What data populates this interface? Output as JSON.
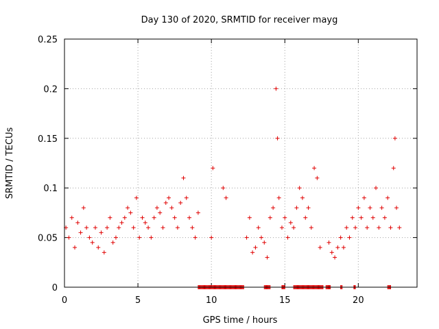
{
  "chart_data": {
    "type": "scatter",
    "title": "Day 130 of 2020, SRMTID for receiver mayg",
    "xlabel": "GPS time / hours",
    "ylabel": "SRMTID / TECUs",
    "xlim": [
      0,
      24
    ],
    "ylim": [
      0,
      0.25
    ],
    "xticks": [
      0,
      5,
      10,
      15,
      20
    ],
    "xtick_labels": [
      "0",
      "5",
      "10",
      "15",
      "20"
    ],
    "yticks": [
      0,
      0.05,
      0.1,
      0.15,
      0.2,
      0.25
    ],
    "ytick_labels": [
      "0",
      "0.05",
      "0.1",
      "0.15",
      "0.2",
      "0.25"
    ],
    "grid": true,
    "marker": "plus",
    "series": [
      {
        "name": "SRMTID",
        "color": "#e00000",
        "x": [
          0.1,
          0.3,
          0.5,
          0.7,
          0.9,
          1.1,
          1.3,
          1.5,
          1.7,
          1.9,
          2.1,
          2.3,
          2.5,
          2.7,
          2.9,
          3.1,
          3.3,
          3.5,
          3.7,
          3.9,
          4.1,
          4.3,
          4.5,
          4.7,
          4.9,
          5.1,
          5.3,
          5.5,
          5.7,
          5.9,
          6.1,
          6.3,
          6.5,
          6.7,
          6.9,
          7.1,
          7.3,
          7.5,
          7.7,
          7.9,
          8.1,
          8.3,
          8.5,
          8.7,
          8.9,
          9.1,
          10.0,
          10.1,
          10.8,
          11.0,
          12.4,
          12.6,
          12.8,
          13.0,
          13.2,
          13.4,
          13.6,
          13.8,
          14.0,
          14.2,
          14.4,
          14.5,
          14.6,
          14.8,
          15.0,
          15.2,
          15.4,
          15.6,
          15.8,
          16.0,
          16.2,
          16.4,
          16.6,
          16.8,
          17.0,
          17.2,
          17.4,
          18.0,
          18.2,
          18.4,
          18.6,
          18.8,
          19.0,
          19.2,
          19.4,
          19.6,
          19.8,
          20.0,
          20.2,
          20.4,
          20.6,
          20.8,
          21.0,
          21.2,
          21.4,
          21.6,
          21.8,
          22.0,
          22.2,
          22.4,
          22.5,
          22.6,
          22.8
        ],
        "y": [
          0.06,
          0.05,
          0.07,
          0.04,
          0.065,
          0.055,
          0.08,
          0.06,
          0.05,
          0.045,
          0.06,
          0.04,
          0.055,
          0.035,
          0.06,
          0.07,
          0.045,
          0.05,
          0.06,
          0.065,
          0.07,
          0.08,
          0.075,
          0.06,
          0.09,
          0.05,
          0.07,
          0.065,
          0.06,
          0.05,
          0.07,
          0.08,
          0.075,
          0.06,
          0.085,
          0.09,
          0.08,
          0.07,
          0.06,
          0.085,
          0.11,
          0.09,
          0.07,
          0.06,
          0.05,
          0.075,
          0.05,
          0.12,
          0.1,
          0.09,
          0.05,
          0.07,
          0.035,
          0.04,
          0.06,
          0.05,
          0.045,
          0.03,
          0.07,
          0.08,
          0.2,
          0.15,
          0.09,
          0.06,
          0.07,
          0.05,
          0.065,
          0.06,
          0.08,
          0.1,
          0.09,
          0.07,
          0.08,
          0.06,
          0.12,
          0.11,
          0.04,
          0.045,
          0.035,
          0.03,
          0.04,
          0.05,
          0.04,
          0.06,
          0.05,
          0.07,
          0.06,
          0.08,
          0.07,
          0.09,
          0.06,
          0.08,
          0.07,
          0.1,
          0.06,
          0.08,
          0.07,
          0.09,
          0.06,
          0.12,
          0.15,
          0.08,
          0.06
        ]
      }
    ],
    "zero_values_x_ranges": [
      [
        9.1,
        12.2
      ],
      [
        13.6,
        14.0
      ],
      [
        14.8,
        15.0
      ],
      [
        15.6,
        17.6
      ],
      [
        17.8,
        18.1
      ],
      [
        18.8,
        18.9
      ],
      [
        19.7,
        19.8
      ],
      [
        22.0,
        22.2
      ]
    ]
  }
}
